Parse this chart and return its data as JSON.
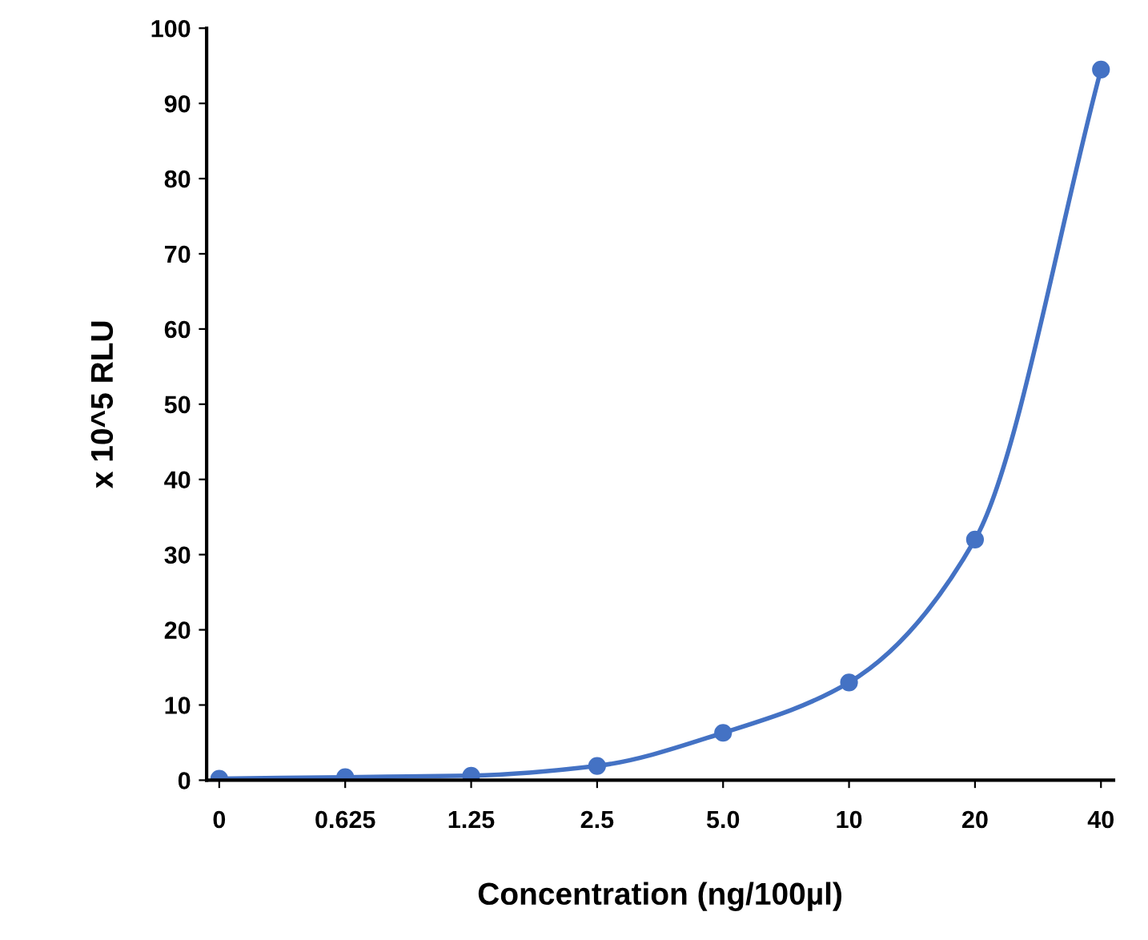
{
  "chart_data": {
    "type": "line",
    "xlabel": "Concentration (ng/100µl)",
    "ylabel": "x 10^5 RLU",
    "categories": [
      "0",
      "0.625",
      "1.25",
      "2.5",
      "5.0",
      "10",
      "20",
      "40"
    ],
    "series": [
      {
        "color": "#4472c4",
        "values": [
          0.2,
          0.4,
          0.6,
          1.9,
          6.3,
          13,
          32,
          94.5
        ]
      }
    ],
    "ylim": [
      0,
      100
    ],
    "yticks": [
      0,
      10,
      20,
      30,
      40,
      50,
      60,
      70,
      80,
      90,
      100
    ],
    "grid": false,
    "marker": "circle",
    "line_style": "solid"
  }
}
